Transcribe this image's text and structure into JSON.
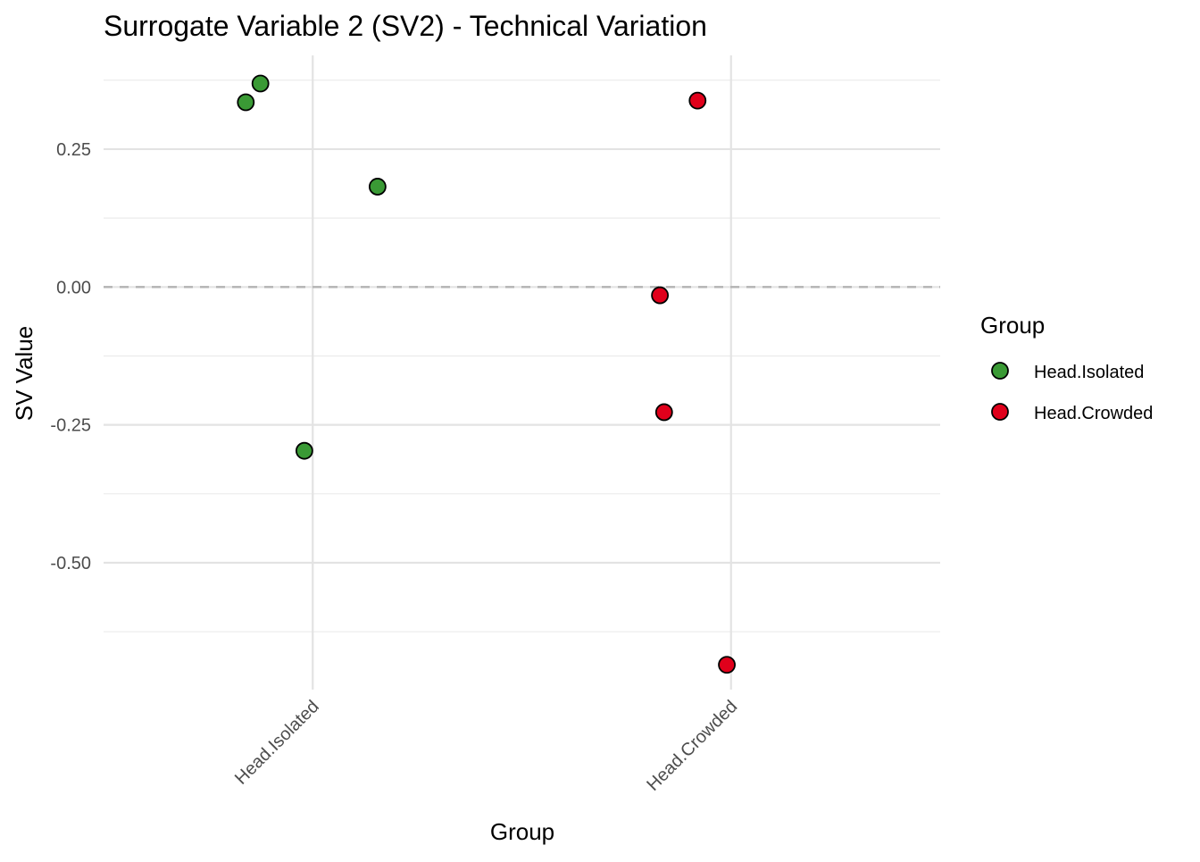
{
  "chart_data": {
    "type": "scatter",
    "title": "Surrogate Variable 2 (SV2) - Technical Variation",
    "xlabel": "Group",
    "ylabel": "SV Value",
    "categories": [
      "Head.Isolated",
      "Head.Crowded"
    ],
    "yticks": [
      0.25,
      0.0,
      -0.25,
      -0.5
    ],
    "ytick_labels": [
      "0.25",
      "0.00",
      "-0.25",
      "-0.50"
    ],
    "ylim": [
      -0.73,
      0.42
    ],
    "reference_line": {
      "y": 0.0,
      "style": "dashed"
    },
    "grid": true,
    "legend": {
      "title": "Group",
      "position": "right",
      "entries": [
        "Head.Isolated",
        "Head.Crowded"
      ]
    },
    "series": [
      {
        "name": "Head.Isolated",
        "color": "#3a9a35",
        "points": [
          {
            "category": "Head.Isolated",
            "jitter": -0.16,
            "y": 0.335
          },
          {
            "category": "Head.Isolated",
            "jitter": -0.125,
            "y": 0.369
          },
          {
            "category": "Head.Isolated",
            "jitter": 0.155,
            "y": 0.182
          },
          {
            "category": "Head.Isolated",
            "jitter": -0.02,
            "y": -0.297
          }
        ]
      },
      {
        "name": "Head.Crowded",
        "color": "#e0001b",
        "points": [
          {
            "category": "Head.Crowded",
            "jitter": -0.08,
            "y": 0.338
          },
          {
            "category": "Head.Crowded",
            "jitter": -0.17,
            "y": -0.015
          },
          {
            "category": "Head.Crowded",
            "jitter": -0.16,
            "y": -0.227
          },
          {
            "category": "Head.Crowded",
            "jitter": -0.01,
            "y": -0.685
          }
        ]
      }
    ]
  }
}
